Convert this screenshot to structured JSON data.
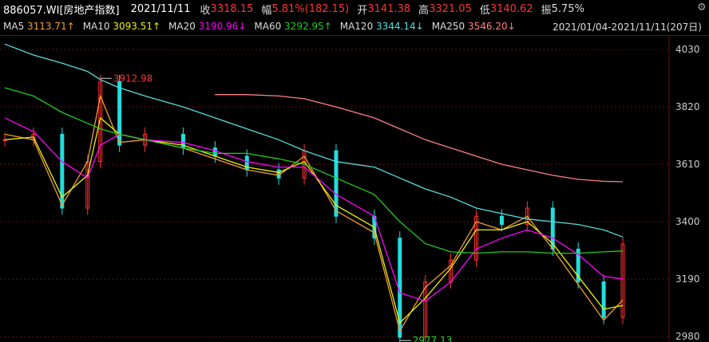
{
  "header": {
    "code_name": "886057.WI[房地产指数]",
    "date": "2021/11/11",
    "close_label": "收",
    "close": "3318.15",
    "change_label": "幅",
    "change": "5.81%(182.15)",
    "open_label": "开",
    "open": "3141.38",
    "high_label": "高",
    "high": "3321.05",
    "low_label": "低",
    "low": "3140.62",
    "amplitude_label": "振",
    "amplitude": "5.75%",
    "settings_icon": "gear-icon"
  },
  "ma_legend": [
    {
      "label": "MA5",
      "value": "3113.71↑",
      "color": "#f0a030"
    },
    {
      "label": "MA10",
      "value": "3093.51↑",
      "color": "#f0f000"
    },
    {
      "label": "MA20",
      "value": "3190.96↓",
      "color": "#ff00ff"
    },
    {
      "label": "MA60",
      "value": "3292.95↑",
      "color": "#22cc22"
    },
    {
      "label": "MA120",
      "value": "3344.14↓",
      "color": "#55dddd"
    },
    {
      "label": "MA250",
      "value": "3546.20↓",
      "color": "#ff8080"
    }
  ],
  "date_range": "2021/01/04-2021/11/11(207日)",
  "colors": {
    "up": "#ff3333",
    "down": "#22dddd",
    "grid": "#6a1010",
    "axis_text": "#cccccc"
  },
  "annotations": {
    "max_label": "3912.98",
    "min_label": "2977.13"
  },
  "chart_data": {
    "type": "line",
    "title": "886057.WI[房地产指数]",
    "xlabel": "",
    "ylabel": "",
    "ylim": [
      2960,
      4080
    ],
    "y_ticks": [
      2980,
      3190,
      3400,
      3610,
      3820,
      4030
    ],
    "grid": true,
    "x_range": [
      "2021/01/04",
      "2021/11/11"
    ],
    "candles": {
      "x": [
        0,
        0.045,
        0.09,
        0.13,
        0.15,
        0.18,
        0.22,
        0.28,
        0.33,
        0.38,
        0.43,
        0.47,
        0.52,
        0.58,
        0.62,
        0.66,
        0.7,
        0.74,
        0.78,
        0.82,
        0.86,
        0.9,
        0.94,
        0.97
      ],
      "close": [
        3700,
        3720,
        3450,
        3620,
        3912.98,
        3680,
        3720,
        3670,
        3640,
        3590,
        3560,
        3660,
        3420,
        3340,
        2977.13,
        3180,
        3260,
        3420,
        3390,
        3450,
        3300,
        3180,
        3050,
        3318.15
      ]
    },
    "series": [
      {
        "name": "MA5",
        "color": "#f0a030",
        "values": [
          3720,
          3700,
          3460,
          3620,
          3860,
          3690,
          3700,
          3670,
          3630,
          3590,
          3570,
          3640,
          3440,
          3360,
          3000,
          3160,
          3240,
          3400,
          3370,
          3420,
          3300,
          3170,
          3040,
          3113.71
        ]
      },
      {
        "name": "MA10",
        "color": "#f0f000",
        "values": [
          3700,
          3710,
          3490,
          3570,
          3780,
          3720,
          3700,
          3680,
          3640,
          3600,
          3580,
          3620,
          3460,
          3380,
          3030,
          3120,
          3230,
          3370,
          3370,
          3400,
          3320,
          3200,
          3080,
          3093.51
        ]
      },
      {
        "name": "MA20",
        "color": "#ff00ff",
        "values": [
          3780,
          3730,
          3620,
          3560,
          3680,
          3720,
          3700,
          3690,
          3660,
          3620,
          3600,
          3600,
          3500,
          3420,
          3140,
          3110,
          3180,
          3300,
          3340,
          3370,
          3340,
          3280,
          3200,
          3190.96
        ]
      },
      {
        "name": "MA60",
        "color": "#22cc22",
        "values": [
          3890,
          3860,
          3800,
          3760,
          3740,
          3720,
          3700,
          3670,
          3650,
          3650,
          3630,
          3610,
          3560,
          3500,
          3400,
          3320,
          3290,
          3285,
          3290,
          3290,
          3285,
          3285,
          3290,
          3292.95
        ]
      },
      {
        "name": "MA120",
        "color": "#55dddd",
        "values": [
          4050,
          4010,
          3980,
          3950,
          3920,
          3890,
          3860,
          3820,
          3780,
          3740,
          3700,
          3660,
          3620,
          3600,
          3560,
          3520,
          3490,
          3450,
          3430,
          3410,
          3400,
          3390,
          3370,
          3344.14
        ]
      },
      {
        "name": "MA250",
        "color": "#ff8080",
        "values": [
          null,
          null,
          null,
          null,
          null,
          null,
          null,
          null,
          3865,
          3865,
          3860,
          3850,
          3820,
          3780,
          3740,
          3700,
          3670,
          3640,
          3610,
          3590,
          3570,
          3555,
          3548,
          3546.2
        ]
      }
    ]
  }
}
